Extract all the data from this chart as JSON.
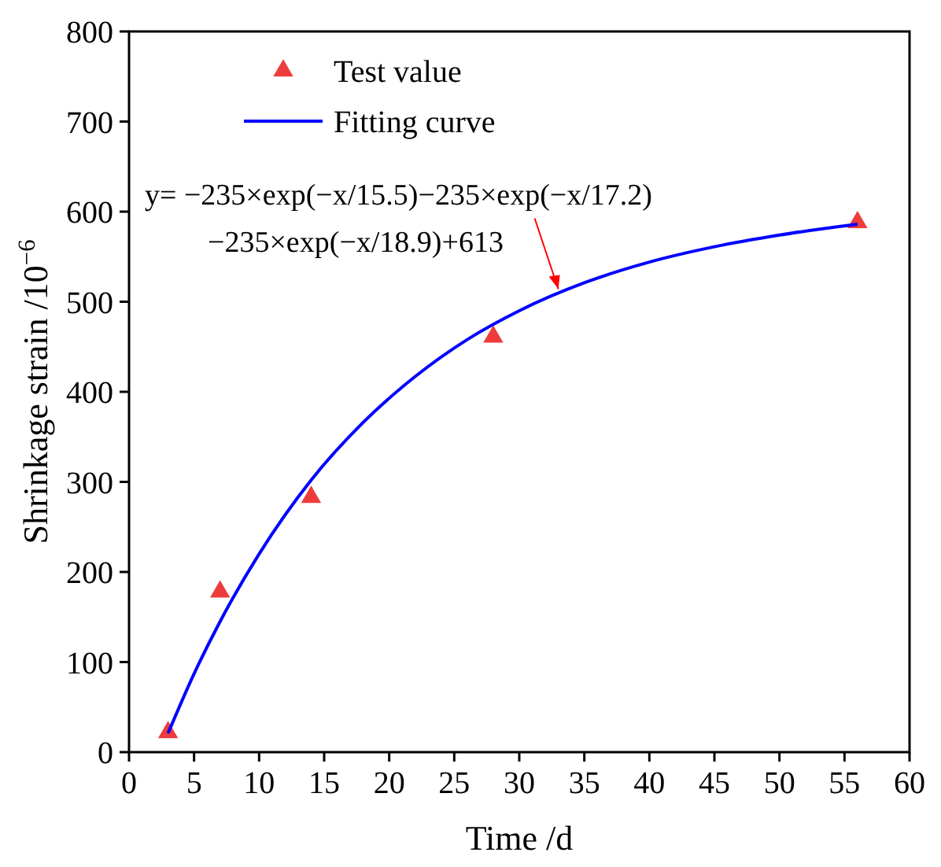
{
  "chart_data": {
    "type": "scatter",
    "xlabel": "Time /d",
    "ylabel": "Shrinkage strain /10$^{−6}$",
    "xlim": [
      0,
      60
    ],
    "ylim": [
      0,
      800
    ],
    "xticks": [
      0,
      5,
      10,
      15,
      20,
      25,
      30,
      35,
      40,
      45,
      50,
      55,
      60
    ],
    "yticks": [
      0,
      100,
      200,
      300,
      400,
      500,
      600,
      700,
      800
    ],
    "grid": false,
    "legend": "top left",
    "series": [
      {
        "name": "Test value",
        "marker": "triangle",
        "color": "#ee3b3b",
        "x": [
          3,
          7,
          14,
          28,
          56
        ],
        "values": [
          22,
          178,
          283,
          461,
          588
        ]
      },
      {
        "name": "Fitting curve",
        "type": "line",
        "marker": "none",
        "line_style": "solid",
        "color": "#0000ff",
        "x": [
          3,
          5,
          7,
          10,
          14,
          18,
          22,
          26,
          30,
          35,
          40,
          45,
          50,
          56
        ],
        "values": [
          21,
          87,
          145,
          220,
          302,
          366,
          417,
          458,
          490,
          521,
          544,
          561,
          574,
          586
        ]
      }
    ],
    "annotations": [
      {
        "text": "y= −235×exp(−x/15.5)−235×exp(−x/17.2)\n−235×exp(−x/18.9)+613",
        "x": 33,
        "y": 514
      }
    ]
  }
}
